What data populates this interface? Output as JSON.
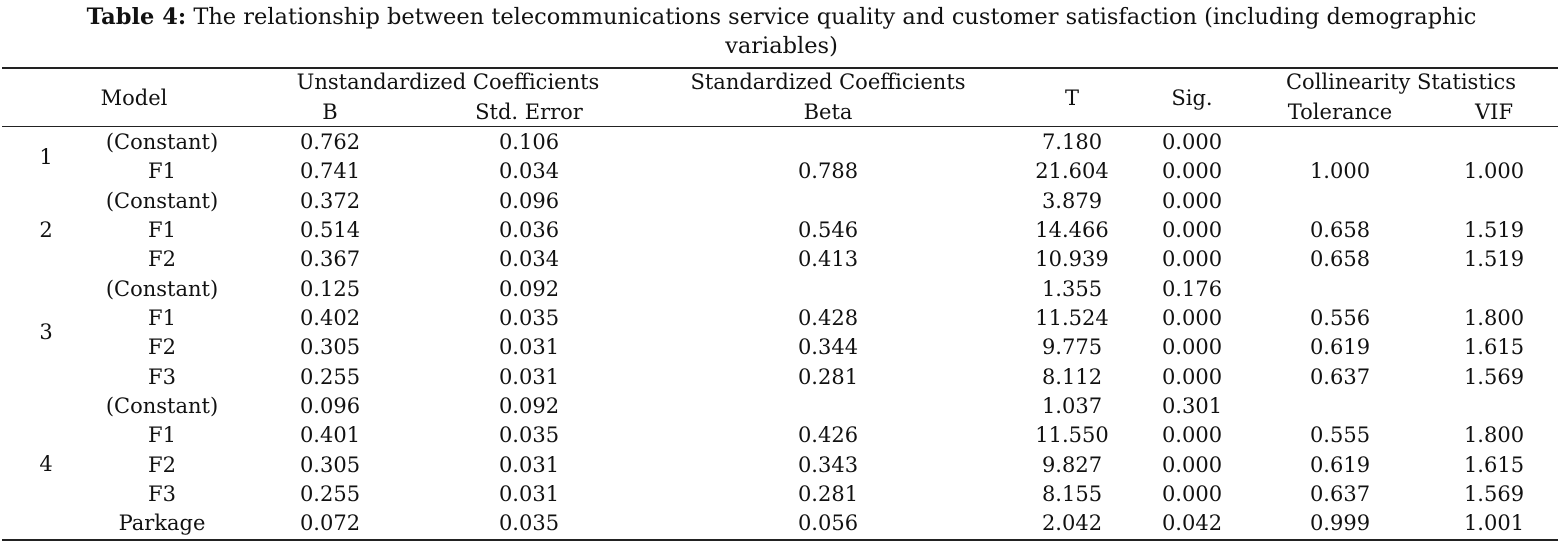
{
  "caption": {
    "label": "Table 4:",
    "line1": "The relationship between telecommunications service quality and customer satisfaction (including demographic",
    "line2": "variables)"
  },
  "header": {
    "model": "Model",
    "unstd": "Unstandardized Coefficients",
    "b": "B",
    "std_error": "Std. Error",
    "std_coef": "Standardized Coefficients",
    "beta": "Beta",
    "t": "T",
    "sig": "Sig.",
    "collin": "Collinearity Statistics",
    "tolerance": "Tolerance",
    "vif": "VIF"
  },
  "models": [
    {
      "number": "1",
      "rows": [
        {
          "var": "(Constant)",
          "b": "0.762",
          "se": "0.106",
          "beta": "",
          "t": "7.180",
          "sig": "0.000",
          "tol": "",
          "vif": ""
        },
        {
          "var": "F1",
          "b": "0.741",
          "se": "0.034",
          "beta": "0.788",
          "t": "21.604",
          "sig": "0.000",
          "tol": "1.000",
          "vif": "1.000"
        }
      ]
    },
    {
      "number": "2",
      "rows": [
        {
          "var": "(Constant)",
          "b": "0.372",
          "se": "0.096",
          "beta": "",
          "t": "3.879",
          "sig": "0.000",
          "tol": "",
          "vif": ""
        },
        {
          "var": "F1",
          "b": "0.514",
          "se": "0.036",
          "beta": "0.546",
          "t": "14.466",
          "sig": "0.000",
          "tol": "0.658",
          "vif": "1.519"
        },
        {
          "var": "F2",
          "b": "0.367",
          "se": "0.034",
          "beta": "0.413",
          "t": "10.939",
          "sig": "0.000",
          "tol": "0.658",
          "vif": "1.519"
        }
      ]
    },
    {
      "number": "3",
      "rows": [
        {
          "var": "(Constant)",
          "b": "0.125",
          "se": "0.092",
          "beta": "",
          "t": "1.355",
          "sig": "0.176",
          "tol": "",
          "vif": ""
        },
        {
          "var": "F1",
          "b": "0.402",
          "se": "0.035",
          "beta": "0.428",
          "t": "11.524",
          "sig": "0.000",
          "tol": "0.556",
          "vif": "1.800"
        },
        {
          "var": "F2",
          "b": "0.305",
          "se": "0.031",
          "beta": "0.344",
          "t": "9.775",
          "sig": "0.000",
          "tol": "0.619",
          "vif": "1.615"
        },
        {
          "var": "F3",
          "b": "0.255",
          "se": "0.031",
          "beta": "0.281",
          "t": "8.112",
          "sig": "0.000",
          "tol": "0.637",
          "vif": "1.569"
        }
      ]
    },
    {
      "number": "4",
      "rows": [
        {
          "var": "(Constant)",
          "b": "0.096",
          "se": "0.092",
          "beta": "",
          "t": "1.037",
          "sig": "0.301",
          "tol": "",
          "vif": ""
        },
        {
          "var": "F1",
          "b": "0.401",
          "se": "0.035",
          "beta": "0.426",
          "t": "11.550",
          "sig": "0.000",
          "tol": "0.555",
          "vif": "1.800"
        },
        {
          "var": "F2",
          "b": "0.305",
          "se": "0.031",
          "beta": "0.343",
          "t": "9.827",
          "sig": "0.000",
          "tol": "0.619",
          "vif": "1.615"
        },
        {
          "var": "F3",
          "b": "0.255",
          "se": "0.031",
          "beta": "0.281",
          "t": "8.155",
          "sig": "0.000",
          "tol": "0.637",
          "vif": "1.569"
        },
        {
          "var": "Parkage",
          "b": "0.072",
          "se": "0.035",
          "beta": "0.056",
          "t": "2.042",
          "sig": "0.042",
          "tol": "0.999",
          "vif": "1.001"
        }
      ]
    }
  ]
}
